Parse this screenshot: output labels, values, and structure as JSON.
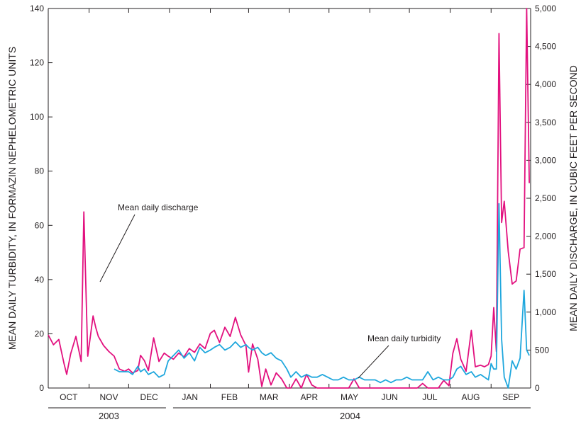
{
  "chart_data": {
    "type": "line",
    "title": "",
    "y_left_label": "MEAN DAILY TURBIDITY, IN FORMAZIN NEPHELOMETRIC UNITS",
    "y_right_label": "MEAN DAILY DISCHARGE, IN CUBIC FEET PER SECOND",
    "y_left_ticks": [
      "0",
      "20",
      "40",
      "60",
      "80",
      "100",
      "120",
      "140"
    ],
    "y_right_ticks": [
      "0",
      "500",
      "1,000",
      "1,500",
      "2,000",
      "2,500",
      "3,000",
      "3,500",
      "4,000",
      "4,500",
      "5,000"
    ],
    "ylim_left": [
      0,
      140
    ],
    "ylim_right": [
      0,
      5000
    ],
    "months": [
      "OCT",
      "NOV",
      "DEC",
      "JAN",
      "FEB",
      "MAR",
      "APR",
      "MAY",
      "JUN",
      "JUL",
      "AUG",
      "SEP"
    ],
    "years": [
      "2003",
      "2004"
    ],
    "annotations": {
      "discharge": "Mean daily discharge",
      "turbidity": "Mean daily turbidity"
    },
    "colors": {
      "discharge": "#e2117f",
      "turbidity": "#1fa7dd",
      "axis": "#231f20"
    },
    "series": [
      {
        "name": "Mean daily discharge",
        "axis": "right",
        "x": [
          "2003-10-01",
          "2003-10-05",
          "2003-10-09",
          "2003-10-13",
          "2003-10-15",
          "2003-10-18",
          "2003-10-22",
          "2003-10-26",
          "2003-10-28",
          "2003-10-31",
          "2003-11-04",
          "2003-11-06",
          "2003-11-08",
          "2003-11-12",
          "2003-11-16",
          "2003-11-20",
          "2003-11-24",
          "2003-11-28",
          "2003-12-01",
          "2003-12-04",
          "2003-12-08",
          "2003-12-10",
          "2003-12-13",
          "2003-12-16",
          "2003-12-20",
          "2003-12-24",
          "2003-12-28",
          "2003-12-31",
          "2004-01-04",
          "2004-01-08",
          "2004-01-12",
          "2004-01-16",
          "2004-01-20",
          "2004-01-24",
          "2004-01-28",
          "2004-02-01",
          "2004-02-04",
          "2004-02-08",
          "2004-02-12",
          "2004-02-16",
          "2004-02-20",
          "2004-02-24",
          "2004-02-28",
          "2004-03-01",
          "2004-03-04",
          "2004-03-08",
          "2004-03-11",
          "2004-03-14",
          "2004-03-18",
          "2004-03-22",
          "2004-03-26",
          "2004-03-30",
          "2004-04-02",
          "2004-04-06",
          "2004-04-10",
          "2004-04-14",
          "2004-04-18",
          "2004-04-22",
          "2004-04-26",
          "2004-04-30",
          "2004-05-04",
          "2004-05-08",
          "2004-05-12",
          "2004-05-16",
          "2004-05-20",
          "2004-05-24",
          "2004-05-28",
          "2004-06-01",
          "2004-06-05",
          "2004-06-09",
          "2004-06-13",
          "2004-06-17",
          "2004-06-21",
          "2004-06-25",
          "2004-06-29",
          "2004-07-03",
          "2004-07-07",
          "2004-07-11",
          "2004-07-15",
          "2004-07-19",
          "2004-07-23",
          "2004-07-27",
          "2004-07-31",
          "2004-08-03",
          "2004-08-06",
          "2004-08-09",
          "2004-08-13",
          "2004-08-17",
          "2004-08-20",
          "2004-08-24",
          "2004-08-27",
          "2004-08-30",
          "2004-09-01",
          "2004-09-03",
          "2004-09-05",
          "2004-09-07",
          "2004-09-09",
          "2004-09-11",
          "2004-09-14",
          "2004-09-17",
          "2004-09-20",
          "2004-09-23",
          "2004-09-26",
          "2004-09-28",
          "2004-09-30"
        ],
        "values": [
          700,
          570,
          640,
          320,
          180,
          450,
          680,
          350,
          2320,
          420,
          950,
          800,
          680,
          560,
          480,
          420,
          250,
          220,
          250,
          200,
          230,
          430,
          360,
          230,
          660,
          350,
          460,
          420,
          380,
          460,
          410,
          520,
          470,
          580,
          520,
          720,
          760,
          600,
          800,
          680,
          930,
          700,
          560,
          210,
          580,
          380,
          20,
          250,
          40,
          200,
          120,
          0,
          0,
          120,
          0,
          180,
          40,
          0,
          0,
          0,
          0,
          0,
          0,
          0,
          120,
          0,
          0,
          0,
          0,
          0,
          0,
          0,
          0,
          0,
          0,
          0,
          0,
          60,
          0,
          0,
          0,
          100,
          30,
          460,
          650,
          380,
          220,
          760,
          280,
          300,
          280,
          310,
          420,
          1060,
          480,
          4670,
          2180,
          2460,
          1800,
          1370,
          1410,
          1830,
          1850,
          5000,
          2700
        ]
      },
      {
        "name": "Mean daily turbidity",
        "axis": "left",
        "x": [
          "2003-11-20",
          "2003-11-24",
          "2003-11-28",
          "2003-12-01",
          "2003-12-04",
          "2003-12-08",
          "2003-12-10",
          "2003-12-13",
          "2003-12-16",
          "2003-12-20",
          "2003-12-24",
          "2003-12-28",
          "2003-12-31",
          "2004-01-04",
          "2004-01-08",
          "2004-01-12",
          "2004-01-16",
          "2004-01-20",
          "2004-01-24",
          "2004-01-28",
          "2004-02-01",
          "2004-02-04",
          "2004-02-08",
          "2004-02-12",
          "2004-02-16",
          "2004-02-20",
          "2004-02-24",
          "2004-02-28",
          "2004-03-01",
          "2004-03-04",
          "2004-03-08",
          "2004-03-11",
          "2004-03-14",
          "2004-03-18",
          "2004-03-22",
          "2004-03-26",
          "2004-03-30",
          "2004-04-02",
          "2004-04-06",
          "2004-04-10",
          "2004-04-14",
          "2004-04-18",
          "2004-04-22",
          "2004-04-26",
          "2004-04-30",
          "2004-05-04",
          "2004-05-08",
          "2004-05-12",
          "2004-05-16",
          "2004-05-20",
          "2004-05-24",
          "2004-05-28",
          "2004-06-01",
          "2004-06-05",
          "2004-06-09",
          "2004-06-13",
          "2004-06-17",
          "2004-06-21",
          "2004-06-25",
          "2004-06-29",
          "2004-07-03",
          "2004-07-07",
          "2004-07-11",
          "2004-07-15",
          "2004-07-19",
          "2004-07-23",
          "2004-07-27",
          "2004-07-31",
          "2004-08-03",
          "2004-08-06",
          "2004-08-09",
          "2004-08-13",
          "2004-08-17",
          "2004-08-20",
          "2004-08-24",
          "2004-08-27",
          "2004-08-30",
          "2004-09-01",
          "2004-09-03",
          "2004-09-05",
          "2004-09-07",
          "2004-09-09",
          "2004-09-11",
          "2004-09-14",
          "2004-09-17",
          "2004-09-20",
          "2004-09-23",
          "2004-09-26",
          "2004-09-28",
          "2004-09-30"
        ],
        "values": [
          7,
          6,
          6,
          6,
          5,
          8,
          6,
          7,
          5,
          6,
          4,
          5,
          10,
          12,
          14,
          11,
          13,
          10,
          15,
          13,
          14,
          15,
          16,
          14,
          15,
          17,
          15,
          16,
          15,
          14,
          15,
          13,
          12,
          13,
          11,
          10,
          7,
          4,
          6,
          4,
          5,
          4,
          4,
          5,
          4,
          3,
          3,
          4,
          3,
          3,
          4,
          3,
          3,
          3,
          2,
          3,
          2,
          3,
          3,
          4,
          3,
          3,
          3,
          6,
          3,
          4,
          3,
          3,
          4,
          7,
          8,
          5,
          6,
          4,
          5,
          4,
          3,
          9,
          7,
          7,
          68,
          18,
          4,
          0,
          10,
          7,
          11,
          36,
          14,
          12
        ]
      }
    ]
  }
}
